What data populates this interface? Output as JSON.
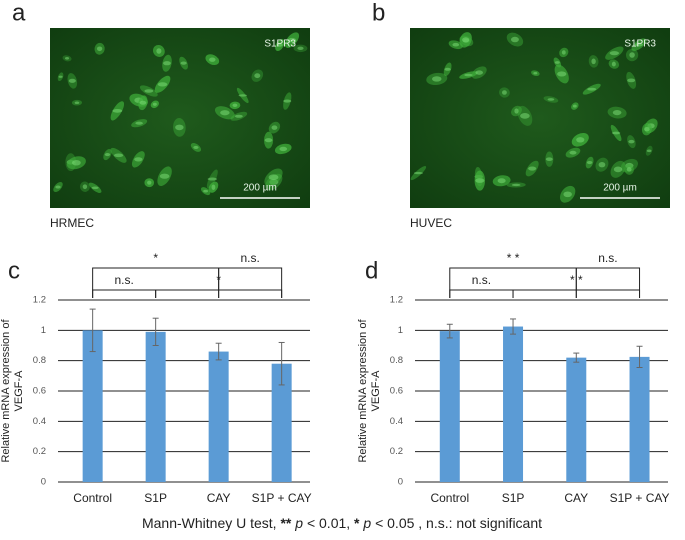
{
  "panels": [
    {
      "letter": "a",
      "marker": "S1PR3",
      "scale": "200 µm",
      "caption": "HRMEC"
    },
    {
      "letter": "b",
      "marker": "S1PR3",
      "scale": "200 µm",
      "caption": "HUVEC"
    }
  ],
  "chart_data": [
    {
      "type": "bar",
      "letter": "c",
      "ylabel": [
        "Relative mRNA expression of",
        "VEGF-A"
      ],
      "categories": [
        "Control",
        "S1P",
        "CAY",
        "S1P + CAY"
      ],
      "values": [
        1.0,
        0.99,
        0.86,
        0.78
      ],
      "errors": [
        0.14,
        0.09,
        0.055,
        0.14
      ],
      "color": "#5b9bd5",
      "ylim": [
        0,
        1.2
      ],
      "yticks": [
        0,
        0.2,
        0.4,
        0.6,
        0.8,
        1,
        1.2
      ],
      "grid": true,
      "comparisons": [
        {
          "between": [
            "Control",
            "S1P"
          ],
          "label": "n.s."
        },
        {
          "between": [
            "S1P",
            "S1P + CAY"
          ],
          "label": "*"
        },
        {
          "between": [
            "Control",
            "CAY"
          ],
          "label": "*"
        },
        {
          "between": [
            "CAY",
            "S1P + CAY"
          ],
          "label": "n.s."
        }
      ]
    },
    {
      "type": "bar",
      "letter": "d",
      "ylabel": [
        "Relative mRNA expression of",
        "VEGF-A"
      ],
      "categories": [
        "Control",
        "S1P",
        "CAY",
        "S1P + CAY"
      ],
      "values": [
        0.995,
        1.025,
        0.82,
        0.825
      ],
      "errors": [
        0.045,
        0.05,
        0.03,
        0.07
      ],
      "color": "#5b9bd5",
      "ylim": [
        0,
        1.2
      ],
      "yticks": [
        0,
        0.2,
        0.4,
        0.6,
        0.8,
        1,
        1.2
      ],
      "grid": true,
      "comparisons": [
        {
          "between": [
            "Control",
            "S1P"
          ],
          "label": "n.s."
        },
        {
          "between": [
            "S1P",
            "S1P + CAY"
          ],
          "label": "* *"
        },
        {
          "between": [
            "Control",
            "CAY"
          ],
          "label": "* *"
        },
        {
          "between": [
            "CAY",
            "S1P + CAY"
          ],
          "label": "n.s."
        }
      ]
    }
  ],
  "footnote": [
    "Mann-Whitney U test,",
    "**",
    "p",
    "< 0.01,",
    "*",
    "p",
    "< 0.05 , n.s.: not significant"
  ]
}
